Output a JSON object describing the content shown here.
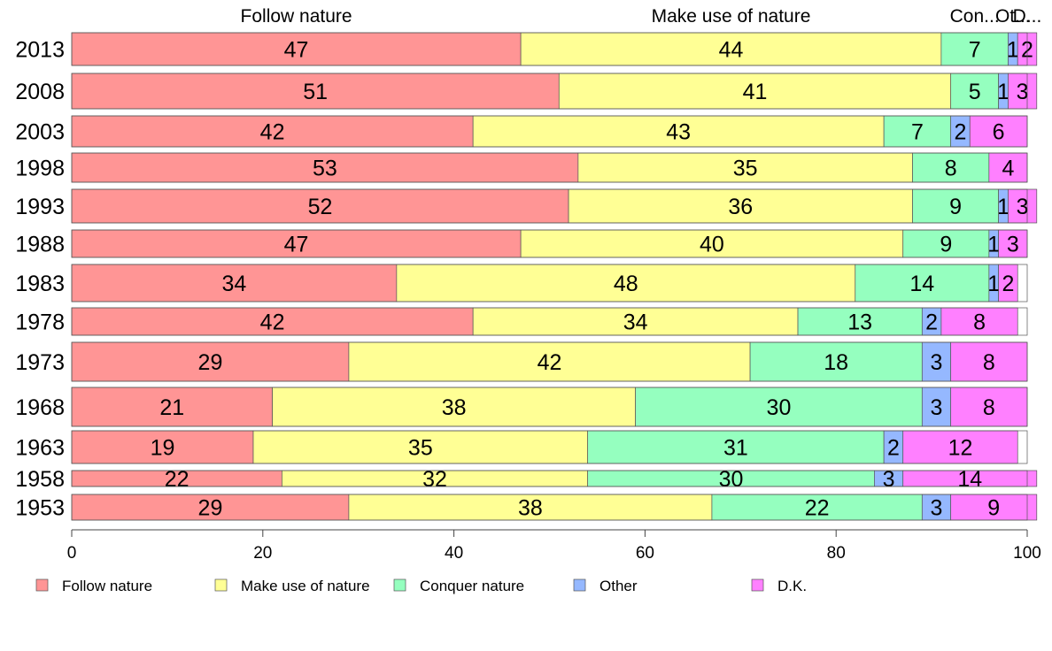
{
  "chart_data": {
    "type": "bar",
    "orientation": "horizontal",
    "stacked": true,
    "categories": [
      "2013",
      "2008",
      "2003",
      "1998",
      "1993",
      "1988",
      "1983",
      "1978",
      "1973",
      "1968",
      "1963",
      "1958",
      "1953"
    ],
    "series": [
      {
        "name": "Follow nature",
        "color": "#FF9595",
        "values": [
          47,
          51,
          42,
          53,
          52,
          47,
          34,
          42,
          29,
          21,
          19,
          22,
          29
        ]
      },
      {
        "name": "Make use of nature",
        "color": "#FFFF95",
        "values": [
          44,
          41,
          43,
          35,
          36,
          40,
          48,
          34,
          42,
          38,
          35,
          32,
          38
        ]
      },
      {
        "name": "Conquer nature",
        "color": "#95FFBF",
        "values": [
          7,
          5,
          7,
          8,
          9,
          9,
          14,
          13,
          18,
          30,
          31,
          30,
          22
        ]
      },
      {
        "name": "Other",
        "color": "#95B8FF",
        "values": [
          1,
          1,
          2,
          0,
          1,
          1,
          1,
          2,
          3,
          3,
          2,
          3,
          3
        ]
      },
      {
        "name": "D.K.",
        "color": "#FF80FF",
        "values": [
          2,
          3,
          6,
          4,
          3,
          3,
          2,
          8,
          8,
          8,
          12,
          14,
          9
        ]
      }
    ],
    "top_labels": [
      "Follow nature",
      "Make use of nature",
      "Con...",
      "Ot...",
      "D..."
    ],
    "xlim": [
      0,
      100
    ],
    "xticks": [
      "0",
      "20",
      "40",
      "60",
      "80",
      "100"
    ],
    "grid": false,
    "legend_position": "bottom"
  }
}
